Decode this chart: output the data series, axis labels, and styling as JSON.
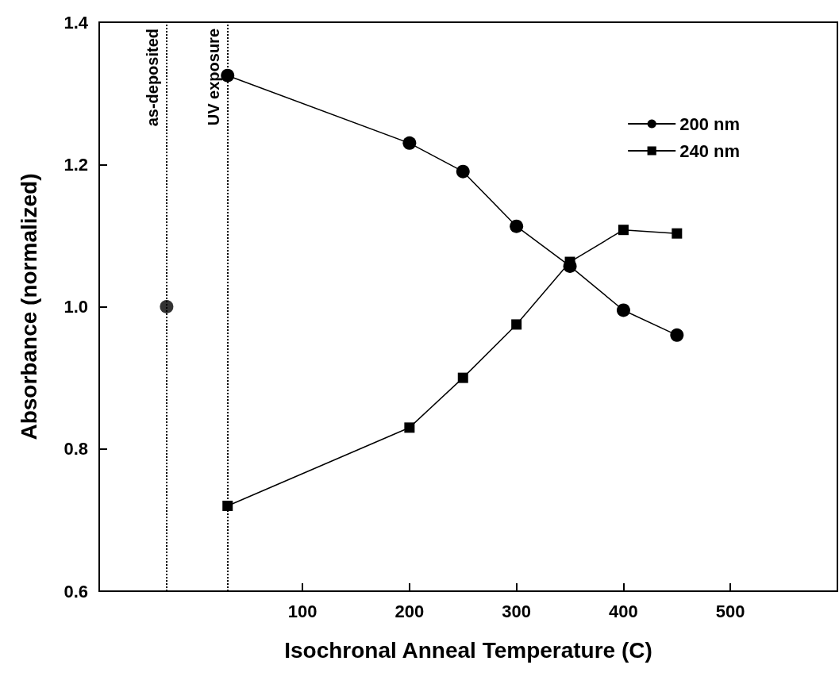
{
  "chart_data": {
    "type": "line",
    "xlabel": "Isochronal Anneal Temperature (C)",
    "ylabel": "Absorbance (normalized)",
    "xlim": [
      -90,
      600
    ],
    "xticks": [
      100,
      200,
      300,
      400,
      500
    ],
    "ylim": [
      0.6,
      1.4
    ],
    "yticks": [
      {
        "value": 0.6,
        "label": "0.6"
      },
      {
        "value": 0.8,
        "label": "0.8"
      },
      {
        "value": 1,
        "label": "1.0"
      },
      {
        "value": 1.2,
        "label": "1.2"
      },
      {
        "value": 1.4,
        "label": "1.4"
      }
    ],
    "grid": false,
    "legend": "top right",
    "series": [
      {
        "name": "200 nm",
        "color": "#000000",
        "marker": "circle",
        "x": [
          30,
          200,
          250,
          300,
          350,
          400,
          450
        ],
        "values": [
          1.325,
          1.23,
          1.19,
          1.113,
          1.057,
          0.995,
          0.96
        ]
      },
      {
        "name": "240 nm",
        "color": "#000000",
        "marker": "square",
        "x": [
          30,
          200,
          250,
          300,
          350,
          400,
          450
        ],
        "values": [
          0.72,
          0.83,
          0.9,
          0.975,
          1.063,
          1.108,
          1.103
        ]
      },
      {
        "type": "scatter",
        "color": "#000000",
        "marker": "circle",
        "x": [
          -27
        ],
        "values": [
          1.0
        ]
      }
    ],
    "ref_lines": [
      {
        "axis": "x",
        "value": -27,
        "label": "as-deposited",
        "line_style": "dotted",
        "color": "#000000"
      },
      {
        "axis": "x",
        "value": 30,
        "label": "UV exposure",
        "line_style": "dotted",
        "color": "#000000"
      }
    ]
  }
}
